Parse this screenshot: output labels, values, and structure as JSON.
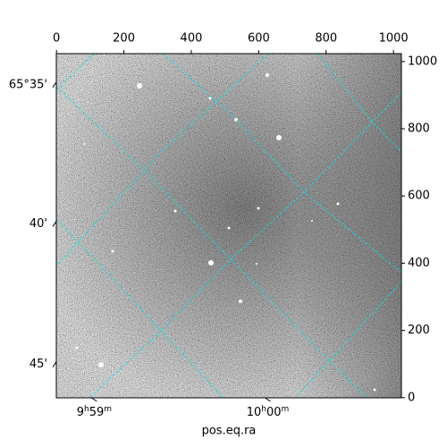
{
  "chart_data": {
    "type": "image",
    "xlabel": "pos.eq.ra",
    "xlim": [
      -0.5,
      1023.5
    ],
    "ylim": [
      -0.5,
      1023.5
    ],
    "xticks": [
      0,
      200,
      400,
      600,
      800,
      1000
    ],
    "yticks": [
      0,
      200,
      400,
      600,
      800,
      1000
    ],
    "dec_ticks": [
      {
        "value": 931,
        "label": "65°35'"
      },
      {
        "value": 517,
        "label": "40'"
      },
      {
        "value": 99,
        "label": "45'"
      }
    ],
    "ra_ticks": [
      {
        "value": 112,
        "label": "9h59m"
      },
      {
        "value": 627,
        "label": "10h00m"
      }
    ],
    "grid_color": "#00e5e5"
  }
}
